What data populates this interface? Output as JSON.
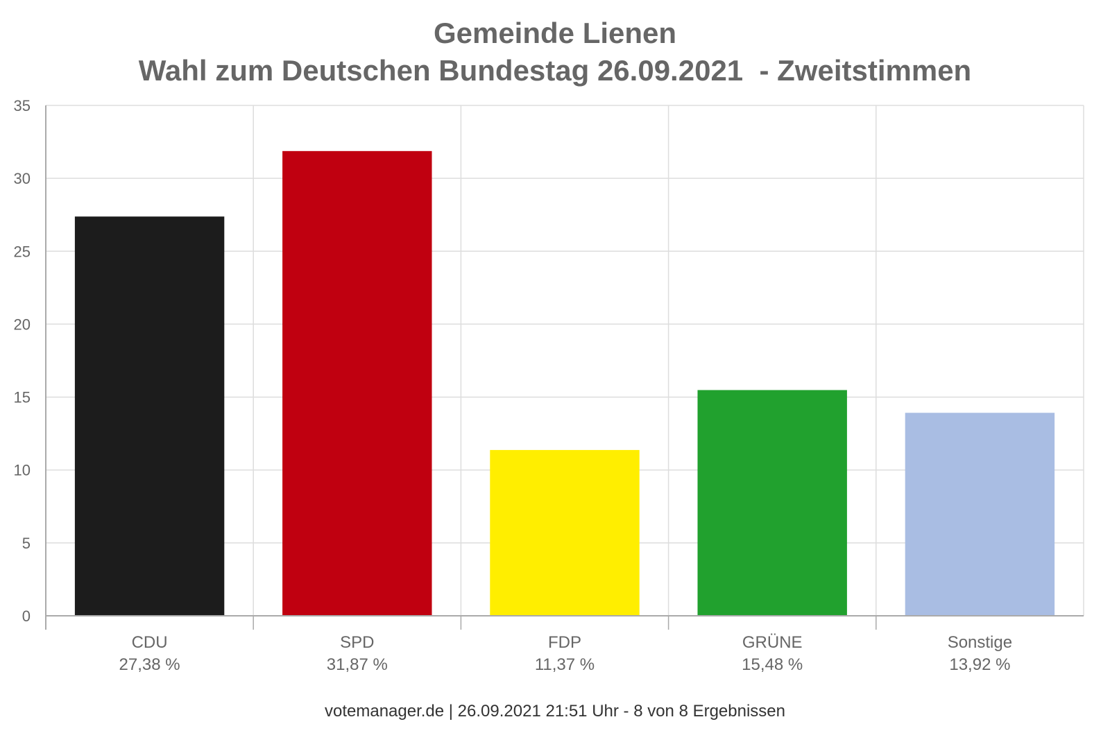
{
  "chart_data": {
    "type": "bar",
    "title": "Gemeinde Lienen",
    "subtitle": "Wahl zum Deutschen Bundestag 26.09.2021  - Zweitstimmen",
    "categories": [
      "CDU",
      "SPD",
      "FDP",
      "GRÜNE",
      "Sonstige"
    ],
    "values": [
      27.38,
      31.87,
      11.37,
      15.48,
      13.92
    ],
    "value_labels": [
      "27,38 %",
      "31,87 %",
      "11,37 %",
      "15,48 %",
      "13,92 %"
    ],
    "colors": [
      "#1c1c1c",
      "#c00010",
      "#ffee00",
      "#21a12e",
      "#a9bde3"
    ],
    "ylim": [
      0,
      35
    ],
    "yticks": [
      0,
      5,
      10,
      15,
      20,
      25,
      30,
      35
    ],
    "xlabel": "",
    "ylabel": "",
    "grid": true,
    "legend": "none"
  },
  "footer": "votemanager.de | 26.09.2021 21:51 Uhr - 8 von 8 Ergebnissen"
}
